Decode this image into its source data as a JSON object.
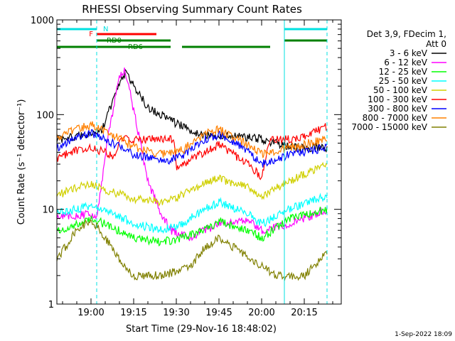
{
  "chart_data": {
    "type": "line",
    "title": "RHESSI Observing Summary Count Rates",
    "xlabel": "Start Time (29-Nov-16 18:48:02)",
    "ylabel": "Count Rate (s⁻¹ detector⁻¹)",
    "y_scale": "log",
    "ylim": [
      1,
      1000
    ],
    "xlim": [
      "18:48",
      "20:28"
    ],
    "x_ticks": [
      "19:00",
      "19:15",
      "19:30",
      "19:45",
      "20:00",
      "20:15"
    ],
    "y_ticks": [
      "1",
      "10",
      "100",
      "1000"
    ],
    "footer": "1-Sep-2022 18:09",
    "legend": {
      "placement": "right",
      "header_lines": [
        "Det 3,9, FDecim 1,",
        "Att 0"
      ],
      "entries": [
        "3 - 6 keV",
        "6 - 12 keV",
        "12 - 25 keV",
        "25 - 50 keV",
        "50 - 100 keV",
        "100 - 300 keV",
        "300 - 800 keV",
        "800 - 7000 keV",
        "7000 - 15000 keV"
      ]
    },
    "cyan_vertical_markers": [
      {
        "time": "18:48",
        "style": "solid"
      },
      {
        "time": "19:02",
        "style": "dashed"
      },
      {
        "time": "20:08",
        "style": "solid"
      },
      {
        "time": "20:23",
        "style": "dashed"
      }
    ],
    "flag_bars": [
      {
        "label": "N",
        "color": "#00e0e0",
        "segments": [
          [
            "18:48",
            "19:02"
          ],
          [
            "20:08",
            "20:23"
          ]
        ]
      },
      {
        "label": "F",
        "color": "#ff0000",
        "segments": [
          [
            "19:02",
            "19:23"
          ]
        ]
      },
      {
        "label": "RD0",
        "color": "#008000",
        "segments": [
          [
            "19:02",
            "19:28"
          ],
          [
            "20:08",
            "20:23"
          ]
        ]
      },
      {
        "label": "RD6",
        "color": "#008000",
        "segments": [
          [
            "18:48",
            "19:28"
          ],
          [
            "19:32",
            "20:03"
          ]
        ]
      }
    ],
    "series": [
      {
        "name": "3 - 6 keV",
        "color": "#000000",
        "x": [
          "18:48",
          "19:00",
          "19:04",
          "19:08",
          "19:12",
          "19:15",
          "19:20",
          "19:30",
          "19:40",
          "19:50",
          "20:00",
          "20:10",
          "20:20",
          "20:23"
        ],
        "values": [
          55,
          62,
          70,
          150,
          280,
          200,
          120,
          80,
          60,
          60,
          55,
          45,
          45,
          45
        ]
      },
      {
        "name": "6 - 12 keV",
        "color": "#ff00ff",
        "x": [
          "18:48",
          "19:00",
          "19:02",
          "19:06",
          "19:10",
          "19:12",
          "19:16",
          "19:20",
          "19:24",
          "19:28",
          "19:35",
          "19:45",
          "19:55",
          "20:00",
          "20:10",
          "20:23"
        ],
        "values": [
          8,
          9,
          8,
          60,
          250,
          300,
          80,
          20,
          10,
          6,
          5,
          7,
          8,
          6,
          7,
          10
        ]
      },
      {
        "name": "12 - 25 keV",
        "color": "#00ff00",
        "x": [
          "18:48",
          "18:55",
          "19:00",
          "19:05",
          "19:15",
          "19:25",
          "19:32",
          "19:40",
          "19:45",
          "19:55",
          "20:00",
          "20:10",
          "20:23"
        ],
        "values": [
          6,
          7,
          8,
          7,
          5,
          4.5,
          5,
          6,
          7.5,
          6,
          5,
          8,
          10
        ]
      },
      {
        "name": "25 - 50 keV",
        "color": "#00ffff",
        "x": [
          "18:48",
          "18:55",
          "19:00",
          "19:05",
          "19:15",
          "19:25",
          "19:32",
          "19:40",
          "19:45",
          "19:55",
          "20:00",
          "20:10",
          "20:23"
        ],
        "values": [
          9,
          10,
          11,
          10,
          7,
          6,
          7,
          10,
          12,
          9,
          7,
          10,
          14
        ]
      },
      {
        "name": "50 - 100 keV",
        "color": "#d0d000",
        "x": [
          "18:48",
          "18:55",
          "19:00",
          "19:05",
          "19:15",
          "19:25",
          "19:32",
          "19:40",
          "19:45",
          "19:55",
          "20:00",
          "20:10",
          "20:23"
        ],
        "values": [
          14,
          17,
          19,
          16,
          13,
          12,
          14,
          19,
          21,
          17,
          14,
          20,
          30
        ]
      },
      {
        "name": "100 - 300 keV",
        "color": "#ff0000",
        "x": [
          "18:48",
          "18:55",
          "19:00",
          "19:05",
          "19:08",
          "19:10",
          "19:20",
          "19:29",
          "19:30",
          "19:40",
          "19:45",
          "19:55",
          "20:00",
          "20:03",
          "20:12",
          "20:23"
        ],
        "values": [
          35,
          42,
          45,
          40,
          35,
          55,
          55,
          55,
          28,
          40,
          48,
          30,
          22,
          55,
          55,
          75
        ]
      },
      {
        "name": "300 - 800 keV",
        "color": "#0000ff",
        "x": [
          "18:48",
          "18:55",
          "19:00",
          "19:05",
          "19:15",
          "19:25",
          "19:32",
          "19:40",
          "19:45",
          "19:55",
          "20:00",
          "20:10",
          "20:23"
        ],
        "values": [
          45,
          58,
          65,
          55,
          38,
          32,
          36,
          55,
          62,
          42,
          30,
          38,
          45
        ]
      },
      {
        "name": "800 - 7000 keV",
        "color": "#ff8000",
        "x": [
          "18:48",
          "18:55",
          "19:00",
          "19:05",
          "19:15",
          "19:25",
          "19:32",
          "19:40",
          "19:45",
          "19:55",
          "20:00",
          "20:10",
          "20:23"
        ],
        "values": [
          58,
          70,
          78,
          68,
          45,
          38,
          42,
          62,
          70,
          48,
          38,
          45,
          55
        ]
      },
      {
        "name": "7000 - 15000 keV",
        "color": "#808000",
        "x": [
          "18:48",
          "18:55",
          "19:00",
          "19:05",
          "19:10",
          "19:15",
          "19:25",
          "19:35",
          "19:40",
          "19:45",
          "19:50",
          "20:00",
          "20:05",
          "20:15",
          "20:23"
        ],
        "values": [
          3,
          6,
          8,
          5,
          3,
          2,
          2,
          2.5,
          4,
          5,
          4,
          2.5,
          2,
          2,
          3.5
        ]
      }
    ]
  }
}
